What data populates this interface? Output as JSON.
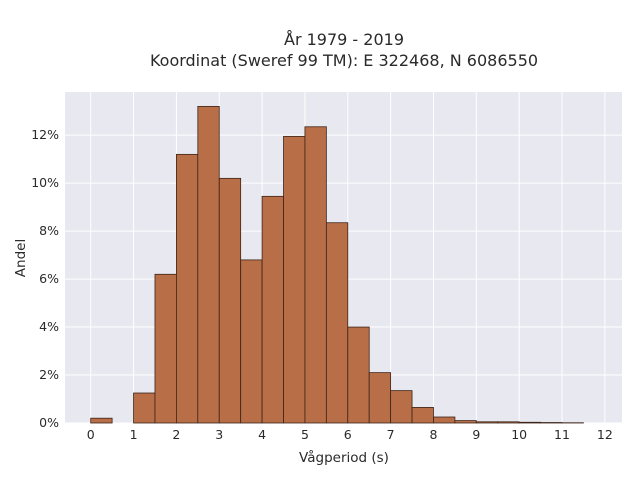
{
  "chart_data": {
    "type": "bar",
    "title": [
      "År 1979 - 2019",
      "Koordinat (Sweref 99 TM): E 322468, N 6086550"
    ],
    "xlabel": "Vågperiod (s)",
    "ylabel": "Andel",
    "x_ticks": [
      "0",
      "1",
      "2",
      "3",
      "4",
      "5",
      "6",
      "7",
      "8",
      "9",
      "10",
      "11",
      "12"
    ],
    "y_ticks": [
      "0%",
      "2%",
      "4%",
      "6%",
      "8%",
      "10%",
      "12%"
    ],
    "xlim": [
      -0.6,
      12.4
    ],
    "ylim": [
      0,
      13.8
    ],
    "grid": true,
    "bin_width": 0.5,
    "bins": [
      {
        "start": 0.0,
        "value": 0.2
      },
      {
        "start": 1.0,
        "value": 1.25
      },
      {
        "start": 1.5,
        "value": 6.2
      },
      {
        "start": 2.0,
        "value": 11.2
      },
      {
        "start": 2.5,
        "value": 13.2
      },
      {
        "start": 3.0,
        "value": 10.2
      },
      {
        "start": 3.5,
        "value": 6.8
      },
      {
        "start": 4.0,
        "value": 9.45
      },
      {
        "start": 4.5,
        "value": 11.95
      },
      {
        "start": 5.0,
        "value": 12.35
      },
      {
        "start": 5.5,
        "value": 8.35
      },
      {
        "start": 6.0,
        "value": 4.0
      },
      {
        "start": 6.5,
        "value": 2.1
      },
      {
        "start": 7.0,
        "value": 1.35
      },
      {
        "start": 7.5,
        "value": 0.65
      },
      {
        "start": 8.0,
        "value": 0.25
      },
      {
        "start": 8.5,
        "value": 0.1
      },
      {
        "start": 9.0,
        "value": 0.05
      },
      {
        "start": 9.5,
        "value": 0.05
      },
      {
        "start": 10.0,
        "value": 0.03
      },
      {
        "start": 10.5,
        "value": 0.02
      },
      {
        "start": 11.0,
        "value": 0.01
      }
    ],
    "colors": {
      "bar_fill": "#b86e47",
      "bar_edge": "#3d2418",
      "plot_bg": "#e8e8f0",
      "grid": "#ffffff"
    }
  }
}
